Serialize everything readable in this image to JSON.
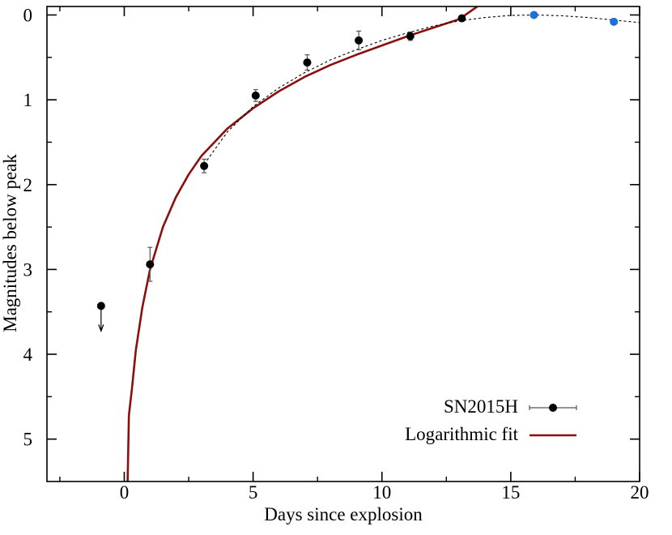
{
  "chart_data": {
    "type": "scatter",
    "xlabel": "Days since explosion",
    "ylabel": "Magnitudes below peak",
    "xlim": [
      -3,
      20
    ],
    "ylim": [
      5.5,
      -0.1
    ],
    "y_inverted": true,
    "x_ticks": [
      0,
      5,
      10,
      15,
      20
    ],
    "y_ticks": [
      0,
      1,
      2,
      3,
      4,
      5
    ],
    "x_tick_labels": [
      "0",
      "5",
      "10",
      "15",
      "20"
    ],
    "y_tick_labels": [
      "0",
      "1",
      "2",
      "3",
      "4",
      "5"
    ],
    "grid": false,
    "legend_position": "bottom-right",
    "series": [
      {
        "name": "SN2015H",
        "kind": "points-with-errorbars",
        "color": "#000000",
        "points": [
          {
            "x": 1.0,
            "y": 2.94,
            "yerr": 0.2
          },
          {
            "x": 3.1,
            "y": 1.78,
            "yerr": 0.08
          },
          {
            "x": 5.1,
            "y": 0.95,
            "yerr": 0.07
          },
          {
            "x": 7.1,
            "y": 0.56,
            "yerr": 0.09
          },
          {
            "x": 9.1,
            "y": 0.3,
            "yerr": 0.11
          },
          {
            "x": 11.1,
            "y": 0.25,
            "yerr": 0.05
          },
          {
            "x": 13.1,
            "y": 0.04,
            "yerr": 0.03
          }
        ]
      },
      {
        "name": "",
        "kind": "upper-limit",
        "color": "#000000",
        "points": [
          {
            "x": -0.9,
            "y": 3.43
          }
        ]
      },
      {
        "name": "",
        "kind": "points",
        "color": "#1a72d9",
        "points": [
          {
            "x": 15.9,
            "y": 0.0
          },
          {
            "x": 19.0,
            "y": 0.08
          }
        ]
      },
      {
        "name": "Logarithmic fit",
        "kind": "line",
        "color": "#8b0f0f",
        "points": [
          {
            "x": 0.13,
            "y": 5.5
          },
          {
            "x": 0.15,
            "y": 5.2
          },
          {
            "x": 0.18,
            "y": 4.72
          },
          {
            "x": 0.3,
            "y": 4.4
          },
          {
            "x": 0.45,
            "y": 3.95
          },
          {
            "x": 0.7,
            "y": 3.45
          },
          {
            "x": 1.0,
            "y": 3.0
          },
          {
            "x": 1.5,
            "y": 2.5
          },
          {
            "x": 2.0,
            "y": 2.15
          },
          {
            "x": 2.5,
            "y": 1.88
          },
          {
            "x": 3.0,
            "y": 1.66
          },
          {
            "x": 4.0,
            "y": 1.34
          },
          {
            "x": 5.0,
            "y": 1.1
          },
          {
            "x": 6.0,
            "y": 0.9
          },
          {
            "x": 7.0,
            "y": 0.73
          },
          {
            "x": 8.0,
            "y": 0.59
          },
          {
            "x": 9.0,
            "y": 0.47
          },
          {
            "x": 10.0,
            "y": 0.36
          },
          {
            "x": 11.0,
            "y": 0.25
          },
          {
            "x": 12.0,
            "y": 0.15
          },
          {
            "x": 13.0,
            "y": 0.05
          },
          {
            "x": 13.7,
            "y": -0.1
          }
        ]
      },
      {
        "name": "",
        "kind": "dashed-line",
        "color": "#000000",
        "points": [
          {
            "x": 3.1,
            "y": 1.76
          },
          {
            "x": 4.0,
            "y": 1.38
          },
          {
            "x": 5.0,
            "y": 1.08
          },
          {
            "x": 6.0,
            "y": 0.86
          },
          {
            "x": 7.0,
            "y": 0.68
          },
          {
            "x": 8.0,
            "y": 0.53
          },
          {
            "x": 9.0,
            "y": 0.41
          },
          {
            "x": 10.0,
            "y": 0.3
          },
          {
            "x": 11.0,
            "y": 0.21
          },
          {
            "x": 12.0,
            "y": 0.13
          },
          {
            "x": 13.0,
            "y": 0.07
          },
          {
            "x": 14.0,
            "y": 0.03
          },
          {
            "x": 15.0,
            "y": 0.005
          },
          {
            "x": 16.0,
            "y": 0.0
          },
          {
            "x": 17.0,
            "y": 0.01
          },
          {
            "x": 18.0,
            "y": 0.03
          },
          {
            "x": 19.0,
            "y": 0.06
          },
          {
            "x": 20.0,
            "y": 0.09
          }
        ]
      }
    ],
    "legend": [
      {
        "label": "SN2015H",
        "symbol": "point-errorbar",
        "color": "#000000"
      },
      {
        "label": "Logarithmic fit",
        "symbol": "line",
        "color": "#8b0f0f"
      }
    ]
  }
}
